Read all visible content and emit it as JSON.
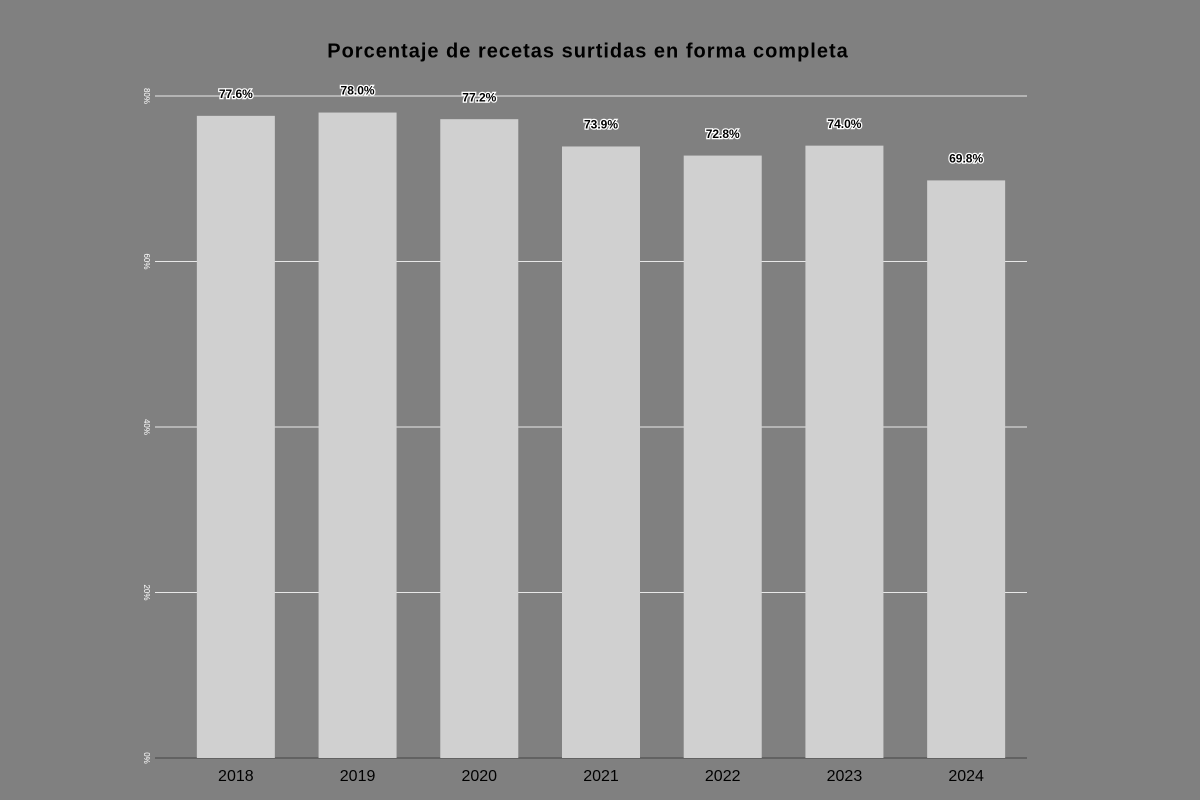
{
  "chart_data": {
    "type": "bar",
    "title": "Porcentaje de recetas surtidas en forma completa",
    "categories": [
      "2018",
      "2019",
      "2020",
      "2021",
      "2022",
      "2023",
      "2024"
    ],
    "values": [
      77.6,
      78.0,
      77.2,
      73.9,
      72.8,
      74.0,
      69.8
    ],
    "value_labels": [
      "77.6%",
      "78.0%",
      "77.2%",
      "73.9%",
      "72.8%",
      "74.0%",
      "69.8%"
    ],
    "color": "#d0d0d0",
    "ylim": [
      0,
      80
    ],
    "yticks": [
      {
        "value": 0,
        "label": "0%"
      },
      {
        "value": 20,
        "label": "20%"
      },
      {
        "value": 40,
        "label": "40%"
      },
      {
        "value": 60,
        "label": "60%"
      },
      {
        "value": 80,
        "label": "80%"
      }
    ],
    "grid": true
  }
}
